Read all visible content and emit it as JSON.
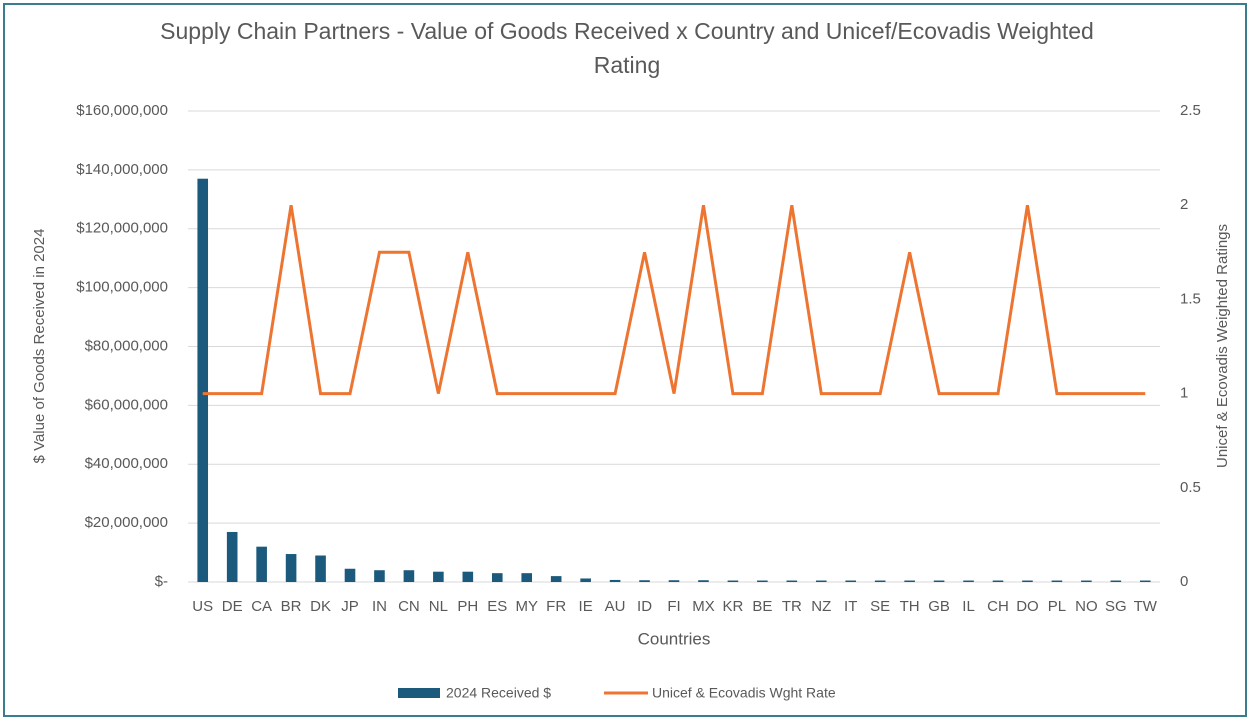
{
  "chart_data": {
    "type": "bar_line",
    "title": "Supply Chain Partners - Value of Goods Received x Country and Unicef/Ecovadis Weighted Rating",
    "x_label": "Countries",
    "y_label": "$ Value of Goods Received  in 2024",
    "y2_label": "Unicef & Ecovadis Weighted Ratings",
    "categories": [
      "US",
      "DE",
      "CA",
      "BR",
      "DK",
      "JP",
      "IN",
      "CN",
      "NL",
      "PH",
      "ES",
      "MY",
      "FR",
      "IE",
      "AU",
      "ID",
      "FI",
      "MX",
      "KR",
      "BE",
      "TR",
      "NZ",
      "IT",
      "SE",
      "TH",
      "GB",
      "IL",
      "CH",
      "DO",
      "PL",
      "NO",
      "SG",
      "TW"
    ],
    "series": [
      {
        "name": "2024 Received $",
        "color": "#1b5a7c",
        "kind": "bar",
        "values": [
          137000000,
          17000000,
          12000000,
          9500000,
          9000000,
          4500000,
          4000000,
          4000000,
          3500000,
          3500000,
          3000000,
          3000000,
          2000000,
          1200000,
          700000,
          600000,
          600000,
          600000,
          500000,
          500000,
          500000,
          500000,
          500000,
          500000,
          500000,
          500000,
          500000,
          500000,
          500000,
          500000,
          500000,
          500000,
          500000
        ]
      },
      {
        "name": "Unicef & Ecovadis Wght Rate",
        "color": "#ed7531",
        "kind": "line",
        "axis": "y2",
        "values": [
          1,
          1,
          1,
          2,
          1,
          1,
          1.75,
          1.75,
          1,
          1.75,
          1,
          1,
          1,
          1,
          1,
          1.75,
          1,
          2,
          1,
          1,
          2,
          1,
          1,
          1,
          1.75,
          1,
          1,
          1,
          2,
          1,
          1,
          1,
          1
        ]
      }
    ],
    "ylim": [
      0,
      160000000
    ],
    "yticks": [
      {
        "value": 0,
        "label": "$-"
      },
      {
        "value": 20000000,
        "label": "$20,000,000"
      },
      {
        "value": 40000000,
        "label": "$40,000,000"
      },
      {
        "value": 60000000,
        "label": "$60,000,000"
      },
      {
        "value": 80000000,
        "label": "$80,000,000"
      },
      {
        "value": 100000000,
        "label": "$100,000,000"
      },
      {
        "value": 120000000,
        "label": "$120,000,000"
      },
      {
        "value": 140000000,
        "label": "$140,000,000"
      },
      {
        "value": 160000000,
        "label": "$160,000,000"
      }
    ],
    "y2lim": [
      0,
      2.5
    ],
    "y2ticks": [
      0,
      0.5,
      1,
      1.5,
      2,
      2.5
    ],
    "grid": true,
    "legend": "bottom"
  }
}
